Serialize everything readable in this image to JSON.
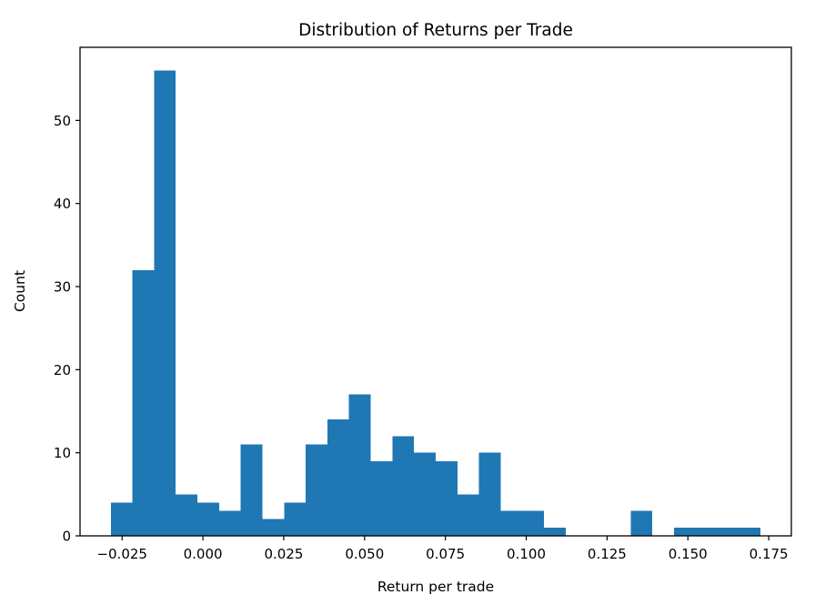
{
  "chart_data": {
    "type": "bar",
    "subtype": "histogram",
    "title": "Distribution of Returns per Trade",
    "xlabel": "Return per trade",
    "ylabel": "Count",
    "bar_color": "#1f77b4",
    "axis_color": "#000000",
    "grid": false,
    "legend": null,
    "bin_start": -0.0285,
    "bin_width": 0.0067,
    "counts": [
      4,
      32,
      56,
      5,
      4,
      3,
      11,
      2,
      4,
      11,
      14,
      17,
      9,
      12,
      10,
      9,
      5,
      10,
      3,
      3,
      1,
      0,
      0,
      0,
      3,
      0,
      1,
      1,
      1,
      1
    ],
    "xlim": [
      -0.038,
      0.182
    ],
    "ylim": [
      0,
      58.8
    ],
    "x_ticks": [
      {
        "value": -0.025,
        "label": "−0.025"
      },
      {
        "value": 0.0,
        "label": "0.000"
      },
      {
        "value": 0.025,
        "label": "0.025"
      },
      {
        "value": 0.05,
        "label": "0.050"
      },
      {
        "value": 0.075,
        "label": "0.075"
      },
      {
        "value": 0.1,
        "label": "0.100"
      },
      {
        "value": 0.125,
        "label": "0.125"
      },
      {
        "value": 0.15,
        "label": "0.150"
      },
      {
        "value": 0.175,
        "label": "0.175"
      }
    ],
    "y_ticks": [
      {
        "value": 0,
        "label": "0"
      },
      {
        "value": 10,
        "label": "10"
      },
      {
        "value": 20,
        "label": "20"
      },
      {
        "value": 30,
        "label": "30"
      },
      {
        "value": 40,
        "label": "40"
      },
      {
        "value": 50,
        "label": "50"
      }
    ]
  }
}
